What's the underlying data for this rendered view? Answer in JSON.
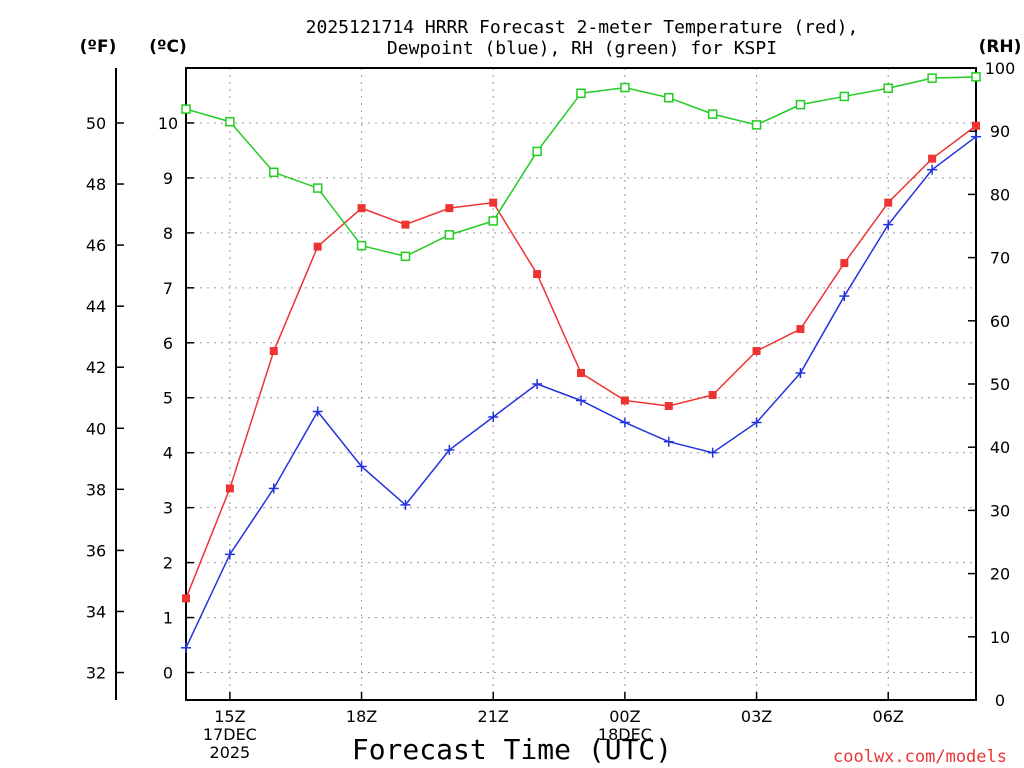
{
  "chart_data": {
    "type": "line",
    "title": "2025121714 HRRR Forecast 2-meter Temperature (red),",
    "subtitle": "Dewpoint (blue), RH (green) for KSPI",
    "xlabel": "Forecast Time (UTC)",
    "ylabel_left_outer": "(ºF)",
    "ylabel_left_inner": "(ºC)",
    "ylabel_right": "(RH)",
    "credit": "coolwx.com/models",
    "x": [
      14,
      15,
      16,
      17,
      18,
      19,
      20,
      21,
      22,
      23,
      24,
      25,
      26,
      27,
      28,
      29,
      30,
      31,
      32
    ],
    "xlim": [
      14,
      32
    ],
    "x_ticks": [
      {
        "x": 15,
        "lines": [
          "15Z",
          "17DEC",
          "2025"
        ]
      },
      {
        "x": 18,
        "lines": [
          "18Z"
        ]
      },
      {
        "x": 21,
        "lines": [
          "21Z"
        ]
      },
      {
        "x": 24,
        "lines": [
          "00Z",
          "18DEC"
        ]
      },
      {
        "x": 27,
        "lines": [
          "03Z"
        ]
      },
      {
        "x": 30,
        "lines": [
          "06Z"
        ]
      }
    ],
    "celsius_axis": {
      "ylim": [
        -0.5,
        11.0
      ],
      "ticks": [
        0,
        1,
        2,
        3,
        4,
        5,
        6,
        7,
        8,
        9,
        10
      ]
    },
    "fahrenheit_axis": {
      "ylim": [
        31.1,
        51.8
      ],
      "ticks": [
        32,
        34,
        36,
        38,
        40,
        42,
        44,
        46,
        48,
        50
      ]
    },
    "rh_axis": {
      "ylim": [
        0,
        100
      ],
      "ticks": [
        0,
        10,
        20,
        30,
        40,
        50,
        60,
        70,
        80,
        90,
        100
      ]
    },
    "grid": true,
    "series": [
      {
        "name": "2-meter Temperature",
        "axis": "celsius",
        "color": "#ee3333",
        "marker": "filled-square",
        "values": [
          1.35,
          3.35,
          5.85,
          7.75,
          8.45,
          8.15,
          8.45,
          8.55,
          7.25,
          5.45,
          4.95,
          4.85,
          5.05,
          5.85,
          6.25,
          7.45,
          8.55,
          9.35,
          9.95
        ]
      },
      {
        "name": "Dewpoint",
        "axis": "celsius",
        "color": "#2233dd",
        "marker": "plus",
        "values": [
          0.45,
          2.15,
          3.35,
          4.75,
          3.75,
          3.05,
          4.05,
          4.65,
          5.25,
          4.95,
          4.55,
          4.2,
          4.0,
          4.55,
          5.45,
          6.85,
          8.15,
          9.15,
          9.75
        ]
      },
      {
        "name": "RH",
        "axis": "rh",
        "color": "#22cc22",
        "marker": "open-square",
        "values": [
          93.5,
          91.5,
          83.5,
          81,
          71.9,
          70.2,
          73.6,
          75.8,
          86.8,
          96,
          96.9,
          95.3,
          92.7,
          91,
          94.2,
          95.5,
          96.8,
          98.4,
          98.6
        ]
      }
    ]
  }
}
